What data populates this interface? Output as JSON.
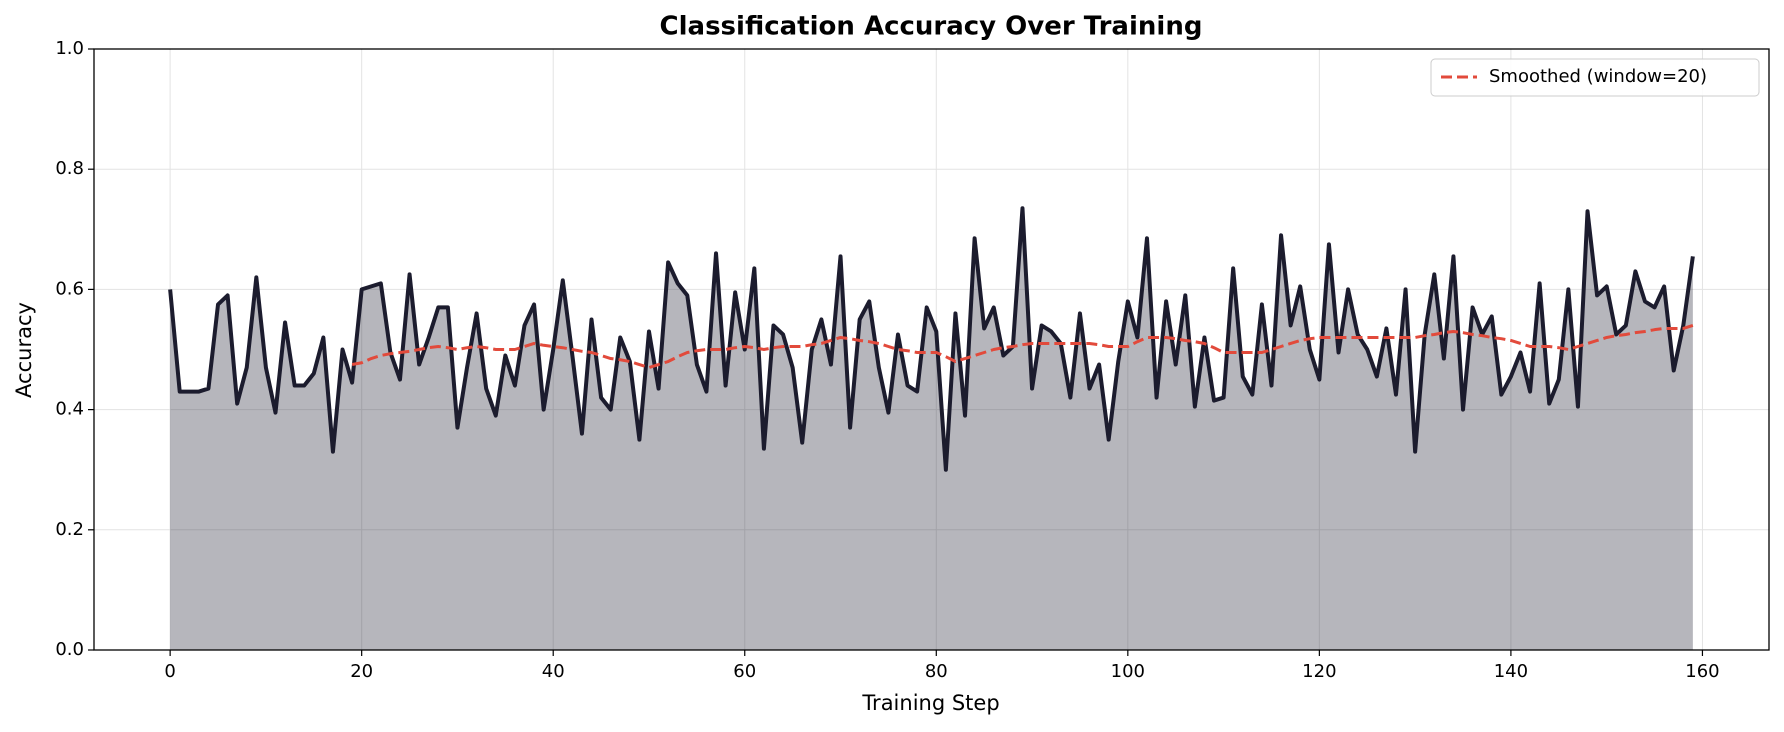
{
  "chart_data": {
    "type": "line",
    "title": "Classification Accuracy Over Training",
    "x_label": "Training Step",
    "y_label": "Accuracy",
    "x": [
      0,
      1,
      2,
      3,
      4,
      5,
      6,
      7,
      8,
      9,
      10,
      11,
      12,
      13,
      14,
      15,
      16,
      17,
      18,
      19,
      20,
      21,
      22,
      23,
      24,
      25,
      26,
      27,
      28,
      29,
      30,
      31,
      32,
      33,
      34,
      35,
      36,
      37,
      38,
      39,
      40,
      41,
      42,
      43,
      44,
      45,
      46,
      47,
      48,
      49,
      50,
      51,
      52,
      53,
      54,
      55,
      56,
      57,
      58,
      59,
      60,
      61,
      62,
      63,
      64,
      65,
      66,
      67,
      68,
      69,
      70,
      71,
      72,
      73,
      74,
      75,
      76,
      77,
      78,
      79,
      80,
      81,
      82,
      83,
      84,
      85,
      86,
      87,
      88,
      89,
      90,
      91,
      92,
      93,
      94,
      95,
      96,
      97,
      98,
      99,
      100,
      101,
      102,
      103,
      104,
      105,
      106,
      107,
      108,
      109,
      110,
      111,
      112,
      113,
      114,
      115,
      116,
      117,
      118,
      119,
      120,
      121,
      122,
      123,
      124,
      125,
      126,
      127,
      128,
      129,
      130,
      131,
      132,
      133,
      134,
      135,
      136,
      137,
      138,
      139,
      140,
      141,
      142,
      143,
      144,
      145,
      146,
      147,
      148,
      149,
      150,
      151,
      152,
      153,
      154,
      155,
      156,
      157,
      158,
      159
    ],
    "series": [
      {
        "color": "#1c1c2e",
        "fill": true,
        "dashed": false,
        "values": [
          0.6,
          0.43,
          0.43,
          0.43,
          0.435,
          0.575,
          0.59,
          0.41,
          0.47,
          0.62,
          0.47,
          0.395,
          0.545,
          0.44,
          0.44,
          0.46,
          0.52,
          0.33,
          0.5,
          0.445,
          0.6,
          0.605,
          0.61,
          0.495,
          0.45,
          0.625,
          0.475,
          0.52,
          0.57,
          0.57,
          0.37,
          0.47,
          0.56,
          0.435,
          0.39,
          0.49,
          0.44,
          0.54,
          0.575,
          0.4,
          0.5,
          0.615,
          0.49,
          0.36,
          0.55,
          0.42,
          0.4,
          0.52,
          0.48,
          0.35,
          0.53,
          0.435,
          0.645,
          0.61,
          0.59,
          0.475,
          0.43,
          0.66,
          0.44,
          0.595,
          0.5,
          0.635,
          0.335,
          0.54,
          0.525,
          0.47,
          0.345,
          0.5,
          0.55,
          0.475,
          0.655,
          0.37,
          0.55,
          0.58,
          0.47,
          0.395,
          0.525,
          0.44,
          0.43,
          0.57,
          0.53,
          0.3,
          0.56,
          0.39,
          0.685,
          0.535,
          0.57,
          0.49,
          0.505,
          0.735,
          0.435,
          0.54,
          0.53,
          0.51,
          0.42,
          0.56,
          0.435,
          0.475,
          0.35,
          0.48,
          0.58,
          0.52,
          0.685,
          0.42,
          0.58,
          0.475,
          0.59,
          0.405,
          0.52,
          0.415,
          0.42,
          0.635,
          0.455,
          0.425,
          0.575,
          0.44,
          0.69,
          0.54,
          0.605,
          0.5,
          0.45,
          0.675,
          0.495,
          0.6,
          0.525,
          0.5,
          0.455,
          0.535,
          0.425,
          0.6,
          0.33,
          0.525,
          0.625,
          0.485,
          0.655,
          0.4,
          0.57,
          0.525,
          0.555,
          0.425,
          0.455,
          0.495,
          0.43,
          0.61,
          0.41,
          0.45,
          0.6,
          0.405,
          0.73,
          0.59,
          0.605,
          0.525,
          0.54,
          0.63,
          0.58,
          0.57,
          0.605,
          0.465,
          0.54,
          0.655
        ]
      },
      {
        "name": "Smoothed (window=20)",
        "color": "#e24a3b",
        "fill": false,
        "dashed": true,
        "values": [
          null,
          null,
          null,
          null,
          null,
          null,
          null,
          null,
          null,
          null,
          null,
          null,
          null,
          null,
          null,
          null,
          null,
          null,
          null,
          0.475,
          0.478,
          0.485,
          0.49,
          0.493,
          0.495,
          0.497,
          0.5,
          0.503,
          0.505,
          0.503,
          0.5,
          0.503,
          0.505,
          0.503,
          0.5,
          0.5,
          0.5,
          0.505,
          0.51,
          0.507,
          0.505,
          0.503,
          0.5,
          0.497,
          0.495,
          0.49,
          0.485,
          0.483,
          0.48,
          0.475,
          0.47,
          0.475,
          0.48,
          0.488,
          0.495,
          0.498,
          0.5,
          0.5,
          0.5,
          0.503,
          0.505,
          0.503,
          0.5,
          0.503,
          0.505,
          0.505,
          0.505,
          0.508,
          0.51,
          0.515,
          0.52,
          0.518,
          0.515,
          0.513,
          0.51,
          0.505,
          0.5,
          0.498,
          0.495,
          0.495,
          0.495,
          0.488,
          0.48,
          0.485,
          0.49,
          0.495,
          0.5,
          0.503,
          0.505,
          0.508,
          0.51,
          0.51,
          0.51,
          0.51,
          0.51,
          0.51,
          0.51,
          0.508,
          0.505,
          0.505,
          0.505,
          0.513,
          0.52,
          0.52,
          0.52,
          0.518,
          0.515,
          0.513,
          0.51,
          0.503,
          0.495,
          0.495,
          0.495,
          0.495,
          0.495,
          0.5,
          0.505,
          0.51,
          0.515,
          0.518,
          0.52,
          0.52,
          0.52,
          0.52,
          0.52,
          0.52,
          0.52,
          0.52,
          0.52,
          0.52,
          0.52,
          0.523,
          0.525,
          0.528,
          0.53,
          0.528,
          0.525,
          0.523,
          0.52,
          0.518,
          0.515,
          0.51,
          0.505,
          0.505,
          0.505,
          0.503,
          0.5,
          0.505,
          0.51,
          0.515,
          0.52,
          0.523,
          0.525,
          0.528,
          0.53,
          0.533,
          0.535,
          0.535,
          0.535,
          0.54
        ]
      }
    ],
    "xlim": [
      -7.95,
      166.95
    ],
    "ylim": [
      0,
      1
    ],
    "xticks": [
      0,
      20,
      40,
      60,
      80,
      100,
      120,
      140,
      160
    ],
    "yticks": [
      {
        "value": 0,
        "label": "0.0"
      },
      0.2,
      0.4,
      0.6,
      0.8,
      {
        "value": 1,
        "label": "1.0"
      }
    ],
    "grid": true,
    "legend": "upper right"
  }
}
